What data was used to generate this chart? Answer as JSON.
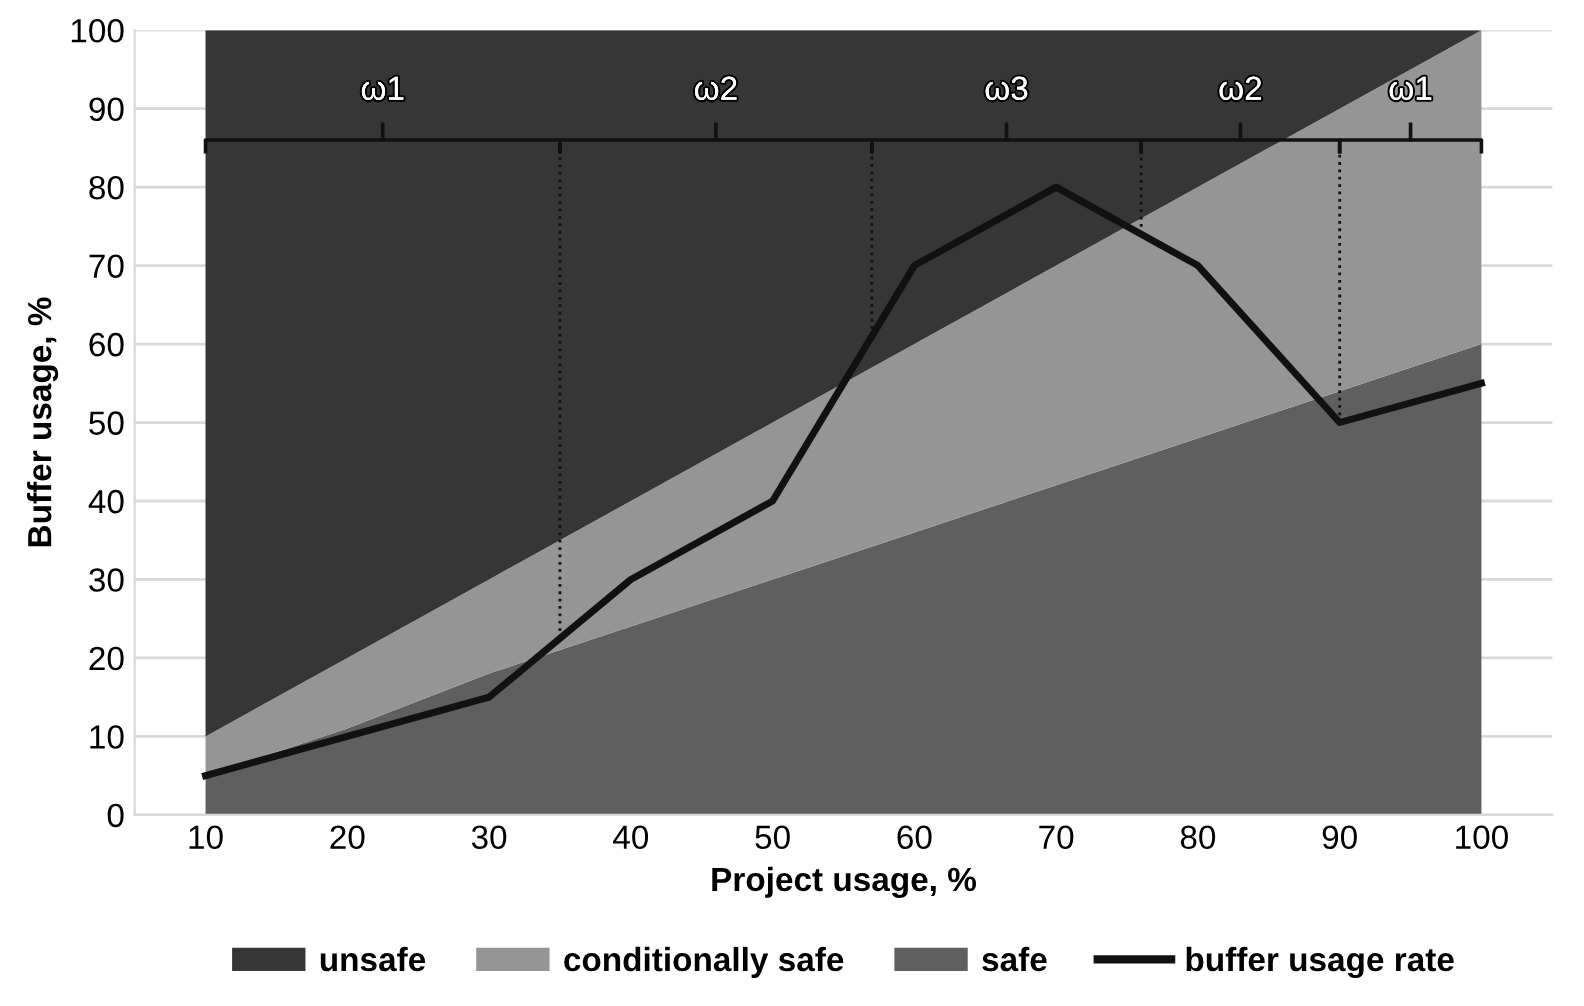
{
  "chart_data": {
    "type": "area",
    "stacked": true,
    "x": [
      10,
      20,
      30,
      40,
      50,
      60,
      70,
      80,
      90,
      100
    ],
    "series": [
      {
        "name": "safe",
        "color": "#5f5f5f",
        "values": [
          5,
          11,
          18,
          24,
          30,
          36,
          42,
          48,
          54,
          60
        ]
      },
      {
        "name": "conditionally safe",
        "color": "#959595",
        "values": [
          5,
          9,
          12,
          16,
          20,
          24,
          28,
          32,
          36,
          40
        ]
      },
      {
        "name": "unsafe",
        "color": "#363636",
        "values": [
          90,
          80,
          70,
          60,
          50,
          40,
          30,
          20,
          10,
          0
        ]
      },
      {
        "name": "buffer usage rate",
        "type": "line",
        "color": "#111111",
        "values": [
          5,
          10,
          15,
          30,
          40,
          70,
          80,
          70,
          50,
          55
        ]
      }
    ],
    "xlabel": "Project usage, %",
    "ylabel": "Buffer usage, %",
    "xlim": [
      5,
      105
    ],
    "xticks": [
      10,
      20,
      30,
      40,
      50,
      60,
      70,
      80,
      90,
      100
    ],
    "ylim": [
      0,
      100
    ],
    "yticks": [
      0,
      10,
      20,
      30,
      40,
      50,
      60,
      70,
      80,
      90,
      100
    ],
    "grid": "y",
    "legend": "bottom",
    "ref_lines": [
      {
        "axis": "x",
        "value": 35,
        "label": null,
        "color": "#111111",
        "line_style": "dotted"
      },
      {
        "axis": "x",
        "value": 57,
        "label": null,
        "color": "#111111",
        "line_style": "dotted"
      },
      {
        "axis": "x",
        "value": 76,
        "label": null,
        "color": "#111111",
        "line_style": "dotted"
      },
      {
        "axis": "x",
        "value": 90,
        "label": null,
        "color": "#111111",
        "line_style": "dotted"
      }
    ],
    "annotations": [
      "ω1",
      "ω2",
      "ω3",
      "ω2",
      "ω1"
    ]
  }
}
